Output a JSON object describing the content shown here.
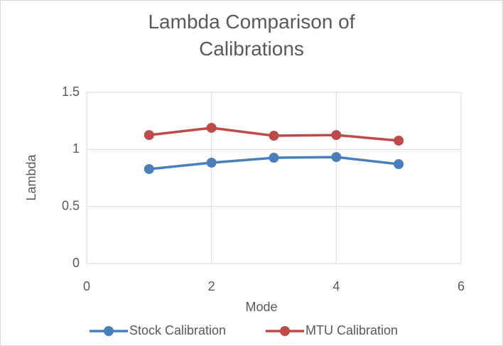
{
  "chart_data": {
    "type": "line",
    "title": "Lambda Comparison of Calibrations",
    "x_label": "Mode",
    "y_label": "Lambda",
    "x": [
      1,
      2,
      3,
      4,
      5
    ],
    "series": [
      {
        "name": "Stock Calibration",
        "color": "#4a7ebb",
        "values": [
          0.828,
          0.884,
          0.927,
          0.933,
          0.871
        ]
      },
      {
        "name": "MTU Calibration",
        "color": "#be4b48",
        "values": [
          1.126,
          1.189,
          1.12,
          1.126,
          1.077
        ]
      }
    ],
    "xlim": [
      0,
      6
    ],
    "xticks": [
      0,
      2,
      4,
      6
    ],
    "ylim": [
      0,
      1.5
    ],
    "yticks": [
      0,
      0.5,
      1,
      1.5
    ],
    "grid": true,
    "legend": "bottom"
  }
}
